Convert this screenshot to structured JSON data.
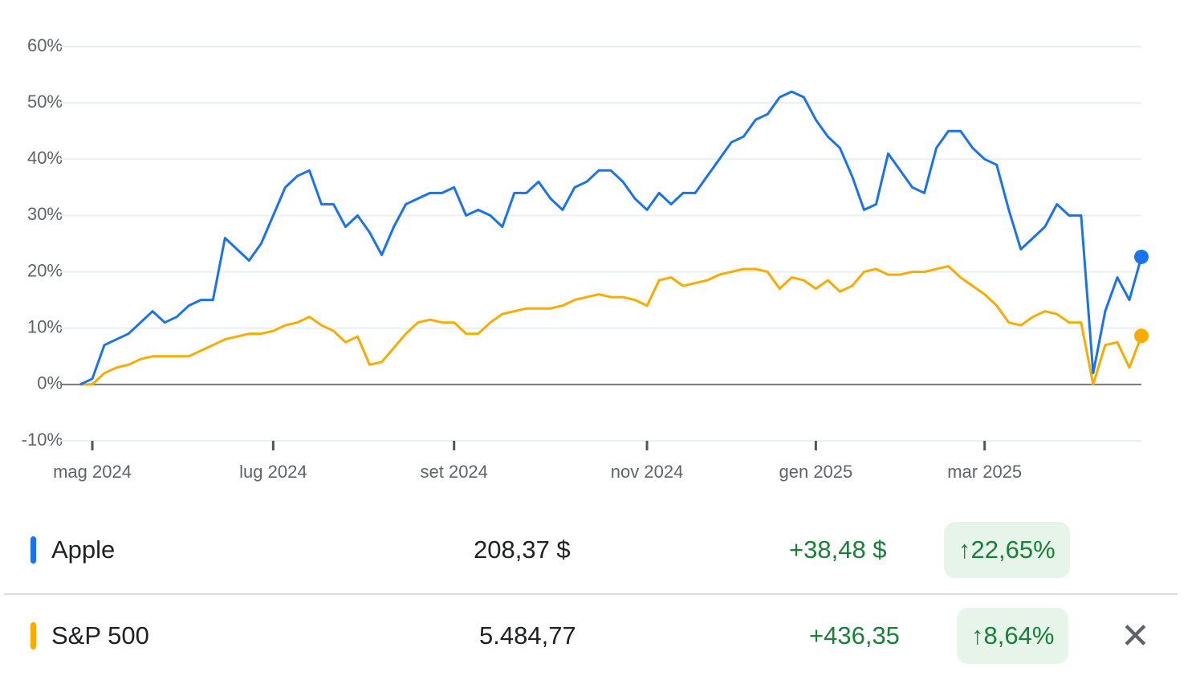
{
  "chart_data": {
    "type": "line",
    "categories": [
      null,
      "mag 2024",
      null,
      null,
      null,
      null,
      null,
      null,
      null,
      null,
      null,
      null,
      null,
      null,
      null,
      null,
      "lug 2024",
      null,
      null,
      null,
      null,
      null,
      null,
      null,
      null,
      null,
      null,
      null,
      null,
      null,
      null,
      "set 2024",
      null,
      null,
      null,
      null,
      null,
      null,
      null,
      null,
      null,
      null,
      null,
      null,
      null,
      null,
      null,
      "nov 2024",
      null,
      null,
      null,
      null,
      null,
      null,
      null,
      null,
      null,
      null,
      null,
      null,
      null,
      "gen 2025",
      null,
      null,
      null,
      null,
      null,
      null,
      null,
      null,
      null,
      null,
      null,
      null,
      null,
      "mar 2025",
      null,
      null,
      null,
      null,
      null,
      null,
      null,
      null,
      null,
      null,
      null,
      null,
      null
    ],
    "series": [
      {
        "name": "Apple",
        "color": "#1a73e8",
        "values": [
          0,
          1,
          7,
          8,
          9,
          11,
          13,
          11,
          12,
          14,
          15,
          15,
          26,
          24,
          22,
          25,
          30,
          35,
          37,
          38,
          32,
          32,
          28,
          30,
          27,
          23,
          28,
          32,
          33,
          34,
          34,
          35,
          30,
          31,
          30,
          28,
          34,
          34,
          36,
          33,
          31,
          35,
          36,
          38,
          38,
          36,
          33,
          31,
          34,
          32,
          34,
          34,
          37,
          40,
          43,
          44,
          47,
          48,
          51,
          52,
          51,
          47,
          44,
          42,
          37,
          31,
          32,
          41,
          38,
          35,
          34,
          42,
          45,
          45,
          42,
          40,
          39,
          31,
          24,
          26,
          28,
          32,
          30,
          30,
          2,
          13,
          19,
          15,
          22.65
        ]
      },
      {
        "name": "S&P 500",
        "color": "#f9ab00",
        "values": [
          0,
          0,
          2,
          3,
          3.5,
          4.5,
          5,
          5,
          5,
          5,
          6,
          7,
          8,
          8.5,
          9,
          9,
          9.5,
          10.5,
          11,
          12,
          10.5,
          9.5,
          7.5,
          8.5,
          3.5,
          4,
          6.5,
          9,
          11,
          11.5,
          11,
          11,
          9,
          9,
          11,
          12.5,
          13,
          13.5,
          13.5,
          13.5,
          14,
          15,
          15.5,
          16,
          15.5,
          15.5,
          15,
          14,
          18.5,
          19,
          17.5,
          18,
          18.5,
          19.5,
          20,
          20.5,
          20.5,
          20,
          17,
          19,
          18.5,
          17,
          18.5,
          16.5,
          17.5,
          20,
          20.5,
          19.5,
          19.5,
          20,
          20,
          20.5,
          21,
          19,
          17.5,
          16,
          14,
          11,
          10.5,
          12,
          13,
          12.5,
          11,
          11,
          0,
          7,
          7.5,
          3,
          8.64
        ]
      }
    ],
    "ylim": [
      -10,
      60
    ],
    "yticks": [
      {
        "value": 60,
        "label": "60%"
      },
      {
        "value": 50,
        "label": "50%"
      },
      {
        "value": 40,
        "label": "40%"
      },
      {
        "value": 30,
        "label": "30%"
      },
      {
        "value": 20,
        "label": "20%"
      },
      {
        "value": 10,
        "label": "10%"
      },
      {
        "value": 0,
        "label": "0%"
      },
      {
        "value": -10,
        "label": "-10%"
      }
    ],
    "grid": true
  },
  "quotes": [
    {
      "price": "208,37 $",
      "change": "+38,48 $",
      "change_percent": "22,65%"
    },
    {
      "price": "5.484,77",
      "change": "+436,35",
      "change_percent": "8,64%"
    }
  ]
}
